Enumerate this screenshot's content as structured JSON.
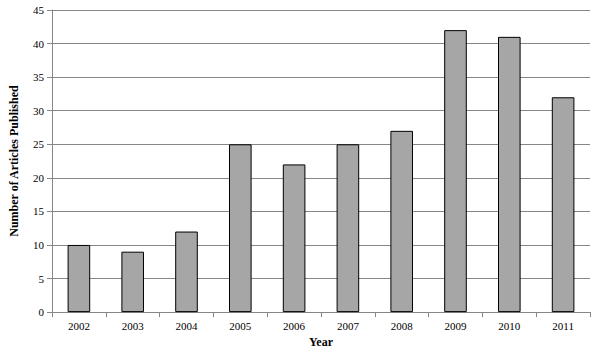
{
  "chart_data": {
    "type": "bar",
    "x_label": "Year",
    "y_label": "Number of Articles Published",
    "categories": [
      "2002",
      "2003",
      "2004",
      "2005",
      "2006",
      "2007",
      "2008",
      "2009",
      "2010",
      "2011"
    ],
    "values": [
      10,
      9,
      12,
      25,
      22,
      25,
      27,
      42,
      41,
      32
    ],
    "color": "#a6a6a6",
    "ylim": [
      0,
      45
    ],
    "yticks": [
      0,
      5,
      10,
      15,
      20,
      25,
      30,
      35,
      40,
      45
    ],
    "grid": true
  }
}
